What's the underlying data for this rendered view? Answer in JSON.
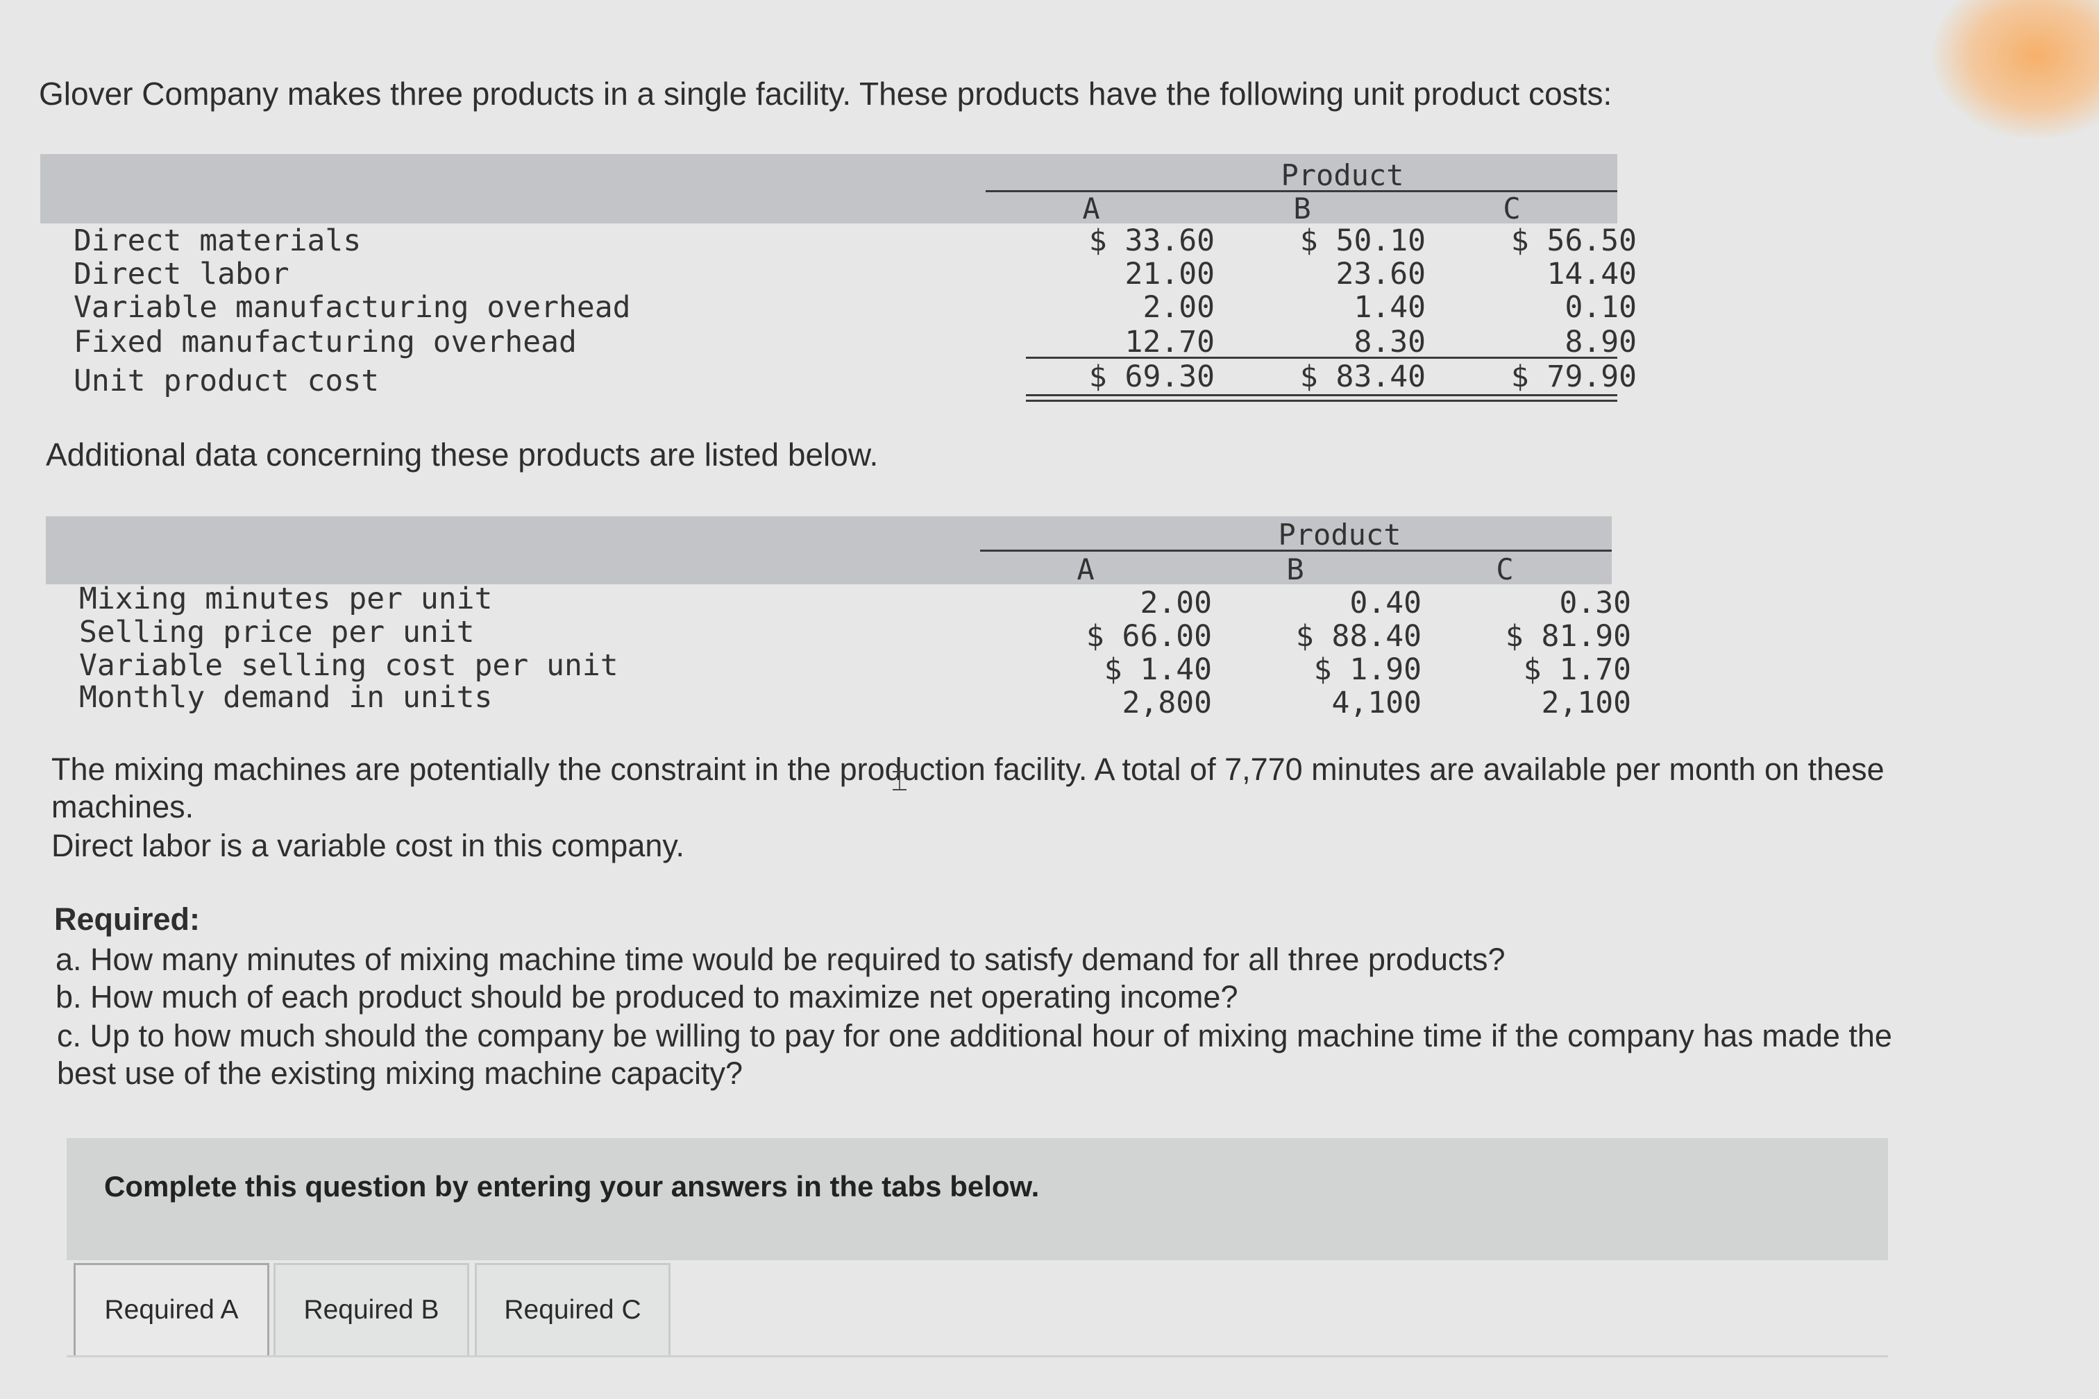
{
  "intro": "Glover Company makes three products in a single facility. These products have the following unit product costs:",
  "cost_table": {
    "group_header": "Product",
    "columns": [
      "A",
      "B",
      "C"
    ],
    "rows": [
      {
        "label": "Direct materials",
        "values": [
          "$ 33.60",
          "$ 50.10",
          "$ 56.50"
        ]
      },
      {
        "label": "Direct labor",
        "values": [
          "21.00",
          "23.60",
          "14.40"
        ]
      },
      {
        "label": "Variable manufacturing overhead",
        "values": [
          "2.00",
          "1.40",
          "0.10"
        ]
      },
      {
        "label": "Fixed manufacturing overhead",
        "values": [
          "12.70",
          "8.30",
          "8.90"
        ]
      },
      {
        "label": "Unit product cost",
        "values": [
          "$ 69.30",
          "$ 83.40",
          "$ 79.90"
        ]
      }
    ]
  },
  "additional_intro": "Additional data concerning these products are listed below.",
  "data_table": {
    "group_header": "Product",
    "columns": [
      "A",
      "B",
      "C"
    ],
    "rows": [
      {
        "label": "Mixing minutes per unit",
        "values": [
          "2.00",
          "0.40",
          "0.30"
        ]
      },
      {
        "label": "Selling price per unit",
        "values": [
          "$ 66.00",
          "$ 88.40",
          "$ 81.90"
        ]
      },
      {
        "label": "Variable selling cost per unit",
        "values": [
          "$ 1.40",
          "$ 1.90",
          "$ 1.70"
        ]
      },
      {
        "label": "Monthly demand in units",
        "values": [
          "2,800",
          "4,100",
          "2,100"
        ]
      }
    ]
  },
  "constraint_text_1": "The mixing machines are potentially the constraint in the production facility. A total of 7,770 minutes are available per month on these",
  "constraint_text_2": "machines.",
  "labor_text": "Direct labor is a variable cost in this company.",
  "required": {
    "heading": "Required:",
    "a": "a. How many minutes of mixing machine time would be required to satisfy demand for all three products?",
    "b": "b. How much of each product should be produced to maximize net operating income?",
    "c1": "c. Up to how much should the company be willing to pay for one additional hour of mixing machine time if the company has made the",
    "c2": "best use of the existing mixing machine capacity?"
  },
  "instruction": "Complete this question by entering your answers in the tabs below.",
  "tabs": [
    "Required A",
    "Required B",
    "Required C"
  ],
  "active_tab": "Required A",
  "colors": {
    "background": "#e6e7e6",
    "header_band": "#c3c4c8",
    "panel": "#d2d3d3"
  }
}
